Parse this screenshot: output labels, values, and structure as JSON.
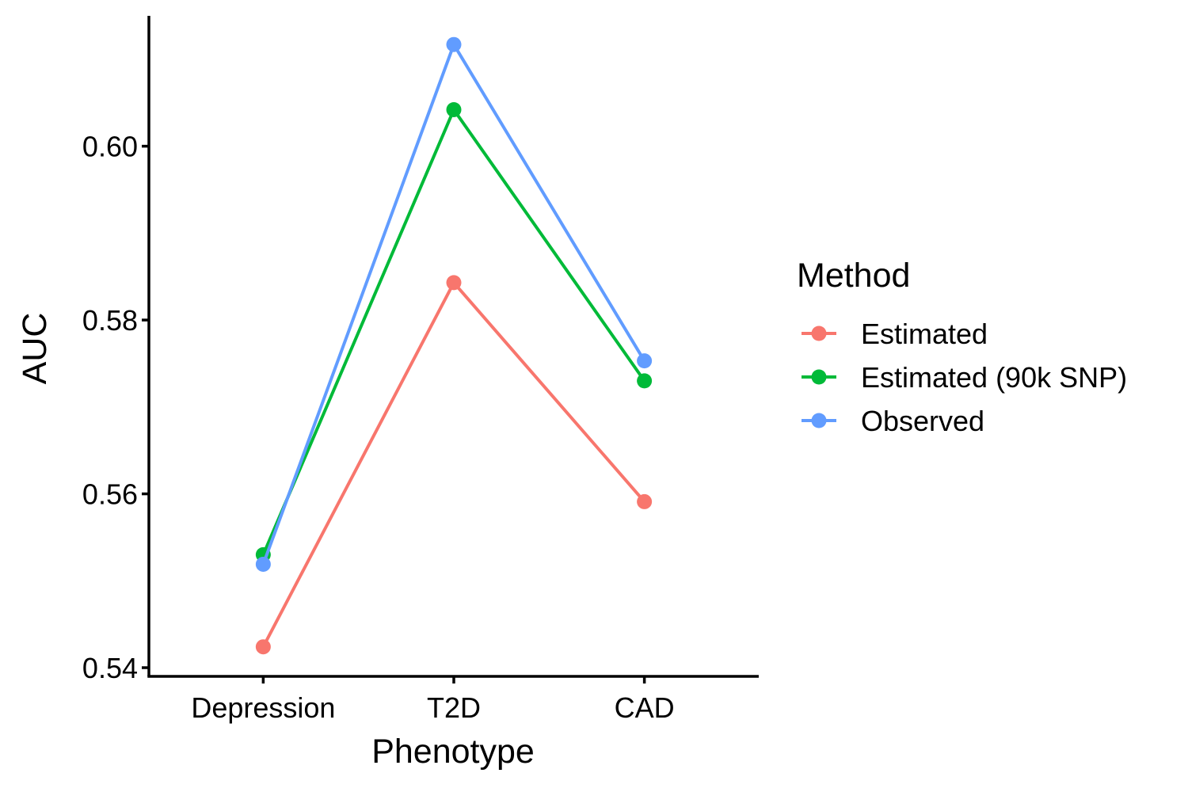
{
  "chart_data": {
    "type": "line",
    "xlabel": "Phenotype",
    "ylabel": "AUC",
    "categories": [
      "Depression",
      "T2D",
      "CAD"
    ],
    "ylim": [
      0.539,
      0.615
    ],
    "yticks": [
      0.54,
      0.56,
      0.58,
      0.6
    ],
    "ytick_labels": [
      "0.54",
      "0.56",
      "0.58",
      "0.60"
    ],
    "grid": false,
    "legend": {
      "title": "Method",
      "position": "right"
    },
    "series": [
      {
        "name": "Estimated",
        "color": "#F8766D",
        "values": [
          0.5424,
          0.5843,
          0.5591
        ]
      },
      {
        "name": "Estimated (90k SNP)",
        "color": "#00BA38",
        "values": [
          0.553,
          0.6042,
          0.573
        ]
      },
      {
        "name": "Observed",
        "color": "#619CFF",
        "values": [
          0.5519,
          0.6117,
          0.5753
        ]
      }
    ]
  }
}
